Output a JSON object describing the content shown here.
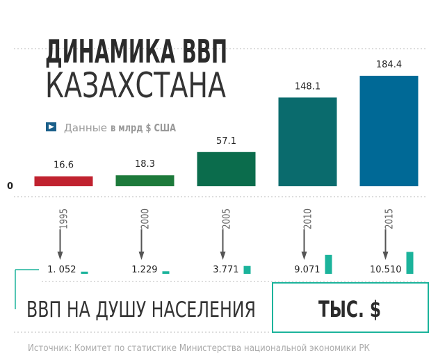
{
  "chart_data": [
    {
      "type": "bar",
      "title": "ДИНАМИКА ВВП",
      "subtitle": "КАЗАХСТАНА",
      "note": "Данные",
      "unit": "в млрд $ США",
      "categories": [
        "1995",
        "2000",
        "2005",
        "2010",
        "2015"
      ],
      "values": [
        16.6,
        18.3,
        57.1,
        148.1,
        184.4
      ],
      "colors": [
        "#c0222f",
        "#1d7a3b",
        "#0b6c4c",
        "#0a6b6d",
        "#006996"
      ],
      "ylim": [
        0,
        200
      ],
      "yticks": [
        0
      ]
    },
    {
      "type": "bar",
      "title": "ВВП НА ДУШУ НАСЕЛЕНИЯ",
      "unit": "ТЫС. $",
      "values": [
        1.052,
        1.229,
        3.771,
        9.071,
        10.51
      ],
      "value_labels": [
        "1. 052",
        "1.229",
        "3.771",
        "9.071",
        "10.510"
      ],
      "color": "#1bb39b",
      "ylim": [
        0,
        12
      ]
    }
  ],
  "source": "Источник: Комитет по статистике Министерства национальной экономики РК"
}
